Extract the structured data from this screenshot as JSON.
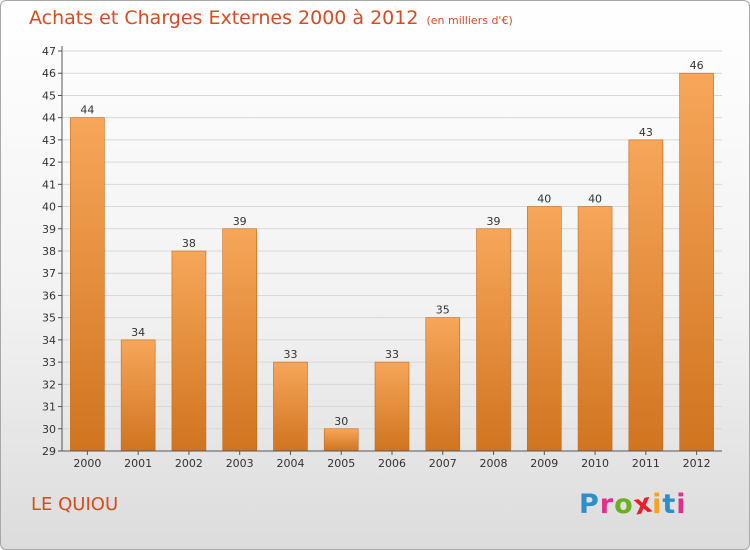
{
  "header": {
    "title": "Achats et Charges Externes 2000 à 2012",
    "subtitle": "(en milliers d'€)"
  },
  "footer": {
    "town": "LE QUIOU",
    "brand": "Proxiti",
    "brand_colors": [
      "#2e8ec9",
      "#e0308a",
      "#6ab023",
      "#e8222a",
      "#f7a21b",
      "#2e8ec9",
      "#e0308a"
    ]
  },
  "colors": {
    "bar_top": "#f7a65a",
    "bar_bottom": "#d0741f",
    "axis": "#555555",
    "grid": "#d8d8d8",
    "accent": "#d94a1e"
  },
  "chart_data": {
    "type": "bar",
    "categories": [
      "2000",
      "2001",
      "2002",
      "2003",
      "2004",
      "2005",
      "2006",
      "2007",
      "2008",
      "2009",
      "2010",
      "2011",
      "2012"
    ],
    "values": [
      44,
      34,
      38,
      39,
      33,
      30,
      33,
      35,
      39,
      40,
      40,
      43,
      46
    ],
    "title": "Achats et Charges Externes 2000 à 2012",
    "subtitle": "(en milliers d'€)",
    "xlabel": "",
    "ylabel": "",
    "ylim": [
      29,
      47
    ],
    "yticks": [
      29,
      30,
      31,
      32,
      33,
      34,
      35,
      36,
      37,
      38,
      39,
      40,
      41,
      42,
      43,
      44,
      45,
      46,
      47
    ],
    "grid": true,
    "legend": "none"
  }
}
